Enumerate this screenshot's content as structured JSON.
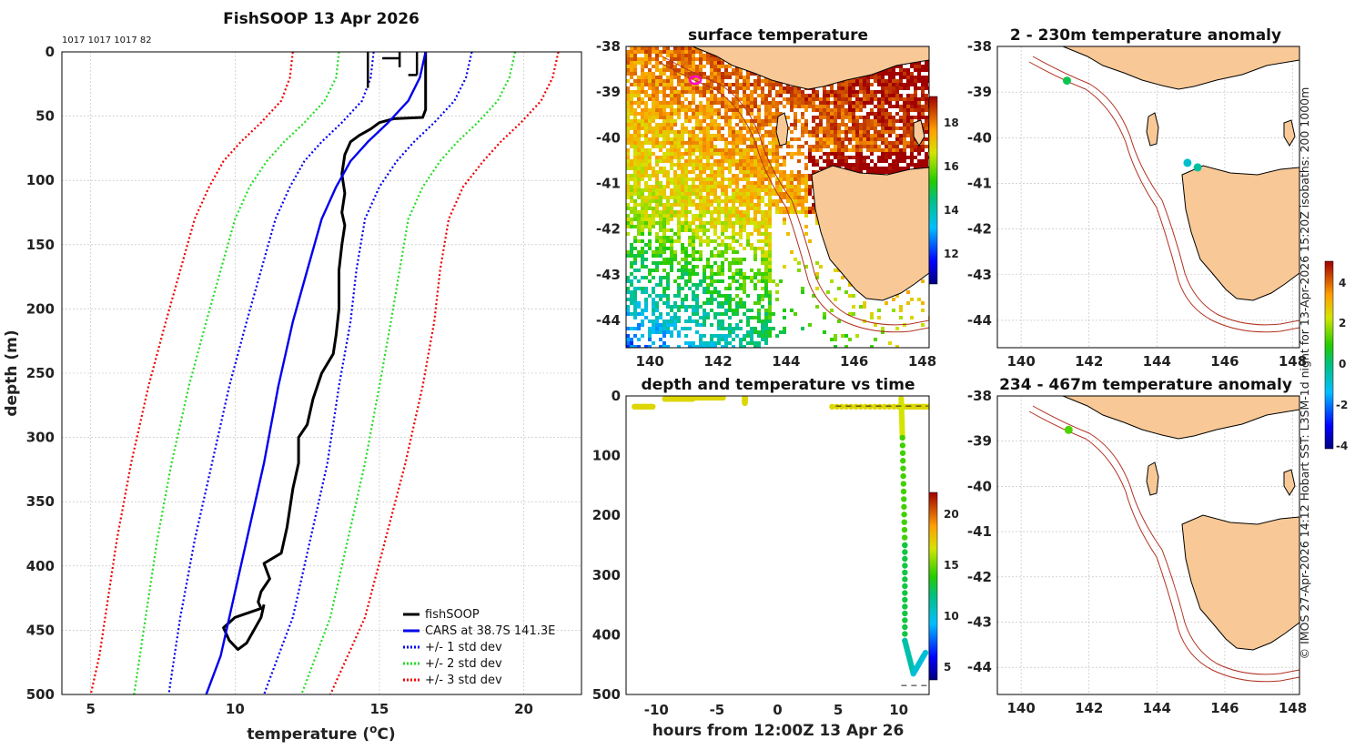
{
  "profile": {
    "title": "FishSOOP 13 Apr 2026",
    "id_line": "1017 1017 1017 82",
    "xlabel": "temperature (",
    "xlabel_sup": "o",
    "xlabel_end": "C)",
    "ylabel": "depth (m)",
    "legend": [
      "fishSOOP",
      "CARS at 38.7S 141.3E",
      "+/- 1 std dev",
      "+/- 2 std dev",
      "+/- 3 std dev"
    ],
    "colors": {
      "fishsoop": "#000000",
      "cars": "#0000ee",
      "sd1": "#0000ee",
      "sd2": "#22dd22",
      "sd3": "#ee0000"
    }
  },
  "sst": {
    "title": "surface temperature",
    "colorbar_ticks": [
      "18",
      "16",
      "14",
      "12"
    ]
  },
  "timeplot": {
    "title": "depth and temperature vs time",
    "xlabel": "hours from 12:00Z 13 Apr 26",
    "colorbar_ticks": [
      "20",
      "15",
      "10",
      "5"
    ]
  },
  "anom1": {
    "title": "2 - 230m temperature anomaly"
  },
  "anom2": {
    "title": "234 - 467m temperature anomaly"
  },
  "anomaly_colorbar_ticks": [
    "4",
    "2",
    "0",
    "-2",
    "-4"
  ],
  "credit": "© IMOS 27-Apr-2026 14:12 Hobart SST: L3SM-1d night for 13-Apr-2026 15:20Z isobaths: 200  1000m",
  "chart_data": [
    {
      "type": "line",
      "title": "FishSOOP 13 Apr 2026",
      "xlabel": "temperature (oC)",
      "ylabel": "depth (m)",
      "xlim": [
        4,
        22
      ],
      "ylim": [
        500,
        0
      ],
      "xticks": [
        5,
        10,
        15,
        20
      ],
      "yticks": [
        0,
        50,
        100,
        150,
        200,
        250,
        300,
        350,
        400,
        450,
        500
      ],
      "series": [
        {
          "name": "fishSOOP",
          "style": "solid",
          "points": [
            [
              16.6,
              0
            ],
            [
              16.6,
              45
            ],
            [
              16.5,
              51
            ],
            [
              15.5,
              52
            ],
            [
              15.0,
              55
            ],
            [
              14.7,
              60
            ],
            [
              14.3,
              65
            ],
            [
              14.0,
              70
            ],
            [
              13.8,
              80
            ],
            [
              13.7,
              95
            ],
            [
              13.8,
              110
            ],
            [
              13.7,
              125
            ],
            [
              13.8,
              135
            ],
            [
              13.7,
              150
            ],
            [
              13.6,
              170
            ],
            [
              13.6,
              200
            ],
            [
              13.5,
              220
            ],
            [
              13.4,
              235
            ],
            [
              13.0,
              250
            ],
            [
              12.7,
              270
            ],
            [
              12.5,
              290
            ],
            [
              12.2,
              300
            ],
            [
              12.2,
              320
            ],
            [
              12.0,
              340
            ],
            [
              11.8,
              370
            ],
            [
              11.6,
              390
            ],
            [
              11.0,
              398
            ],
            [
              11.2,
              410
            ],
            [
              10.9,
              420
            ],
            [
              10.8,
              428
            ],
            [
              10.9,
              433
            ],
            [
              10.0,
              440
            ],
            [
              9.6,
              448
            ],
            [
              9.8,
              458
            ],
            [
              10.1,
              465
            ],
            [
              10.4,
              460
            ],
            [
              10.9,
              440
            ],
            [
              11.0,
              430
            ]
          ]
        },
        {
          "name": "CARS at 38.7S 141.3E",
          "style": "solid",
          "points": [
            [
              16.6,
              0
            ],
            [
              16.4,
              20
            ],
            [
              16.0,
              38
            ],
            [
              15.3,
              55
            ],
            [
              14.6,
              70
            ],
            [
              14.0,
              85
            ],
            [
              13.5,
              105
            ],
            [
              13.0,
              130
            ],
            [
              12.5,
              170
            ],
            [
              12.0,
              210
            ],
            [
              11.5,
              260
            ],
            [
              11.0,
              320
            ],
            [
              10.4,
              380
            ],
            [
              9.8,
              440
            ],
            [
              9.5,
              470
            ],
            [
              9.0,
              500
            ]
          ]
        },
        {
          "name": "CARS +1 std dev",
          "style": "dotted",
          "points": [
            [
              18.2,
              0
            ],
            [
              18.0,
              20
            ],
            [
              17.6,
              38
            ],
            [
              16.9,
              55
            ],
            [
              16.2,
              70
            ],
            [
              15.6,
              85
            ],
            [
              15.0,
              105
            ],
            [
              14.5,
              130
            ],
            [
              14.2,
              170
            ],
            [
              14.0,
              210
            ],
            [
              13.6,
              260
            ],
            [
              13.2,
              320
            ],
            [
              12.6,
              380
            ],
            [
              12.0,
              440
            ],
            [
              11.5,
              470
            ],
            [
              11.0,
              500
            ]
          ]
        },
        {
          "name": "CARS -1 std dev",
          "style": "dotted",
          "points": [
            [
              14.8,
              0
            ],
            [
              14.7,
              20
            ],
            [
              14.4,
              38
            ],
            [
              13.7,
              55
            ],
            [
              13.0,
              70
            ],
            [
              12.4,
              85
            ],
            [
              11.9,
              105
            ],
            [
              11.4,
              130
            ],
            [
              10.9,
              170
            ],
            [
              10.4,
              210
            ],
            [
              9.8,
              260
            ],
            [
              9.2,
              320
            ],
            [
              8.6,
              380
            ],
            [
              8.1,
              440
            ],
            [
              7.9,
              470
            ],
            [
              7.7,
              500
            ]
          ]
        },
        {
          "name": "CARS +2 std dev",
          "style": "dotted",
          "points": [
            [
              19.7,
              0
            ],
            [
              19.5,
              20
            ],
            [
              19.1,
              38
            ],
            [
              18.4,
              55
            ],
            [
              17.7,
              70
            ],
            [
              17.1,
              85
            ],
            [
              16.5,
              105
            ],
            [
              16.0,
              130
            ],
            [
              15.7,
              170
            ],
            [
              15.4,
              210
            ],
            [
              15.0,
              260
            ],
            [
              14.5,
              320
            ],
            [
              13.9,
              380
            ],
            [
              13.3,
              440
            ],
            [
              12.8,
              470
            ],
            [
              12.3,
              500
            ]
          ]
        },
        {
          "name": "CARS -2 std dev",
          "style": "dotted",
          "points": [
            [
              13.6,
              0
            ],
            [
              13.5,
              20
            ],
            [
              13.1,
              38
            ],
            [
              12.4,
              55
            ],
            [
              11.7,
              70
            ],
            [
              11.1,
              85
            ],
            [
              10.5,
              105
            ],
            [
              10.0,
              130
            ],
            [
              9.5,
              170
            ],
            [
              9.0,
              210
            ],
            [
              8.4,
              260
            ],
            [
              7.8,
              320
            ],
            [
              7.3,
              380
            ],
            [
              6.9,
              440
            ],
            [
              6.7,
              470
            ],
            [
              6.5,
              500
            ]
          ]
        },
        {
          "name": "CARS +3 std dev",
          "style": "dotted",
          "points": [
            [
              21.2,
              0
            ],
            [
              21.0,
              20
            ],
            [
              20.6,
              38
            ],
            [
              19.9,
              55
            ],
            [
              19.2,
              70
            ],
            [
              18.6,
              85
            ],
            [
              17.9,
              105
            ],
            [
              17.4,
              130
            ],
            [
              17.1,
              170
            ],
            [
              16.9,
              210
            ],
            [
              16.5,
              260
            ],
            [
              15.9,
              320
            ],
            [
              15.2,
              380
            ],
            [
              14.5,
              440
            ],
            [
              13.9,
              470
            ],
            [
              13.3,
              500
            ]
          ]
        },
        {
          "name": "CARS -3 std dev",
          "style": "dotted",
          "points": [
            [
              12.0,
              0
            ],
            [
              11.9,
              20
            ],
            [
              11.6,
              38
            ],
            [
              10.9,
              55
            ],
            [
              10.2,
              70
            ],
            [
              9.6,
              85
            ],
            [
              9.1,
              105
            ],
            [
              8.6,
              130
            ],
            [
              8.1,
              170
            ],
            [
              7.6,
              210
            ],
            [
              7.0,
              260
            ],
            [
              6.4,
              320
            ],
            [
              5.9,
              380
            ],
            [
              5.5,
              440
            ],
            [
              5.3,
              470
            ],
            [
              5.0,
              500
            ]
          ]
        }
      ]
    },
    {
      "type": "heatmap",
      "title": "surface temperature",
      "xlim": [
        139.3,
        148.2
      ],
      "ylim": [
        -44.6,
        -38
      ],
      "xticks": [
        140,
        142,
        144,
        146,
        148
      ],
      "yticks": [
        -38,
        -39,
        -40,
        -41,
        -42,
        -43,
        -44
      ],
      "colorbar_range": [
        11,
        19
      ]
    },
    {
      "type": "scatter",
      "title": "depth and temperature vs time",
      "xlabel": "hours from 12:00Z 13 Apr 26",
      "xlim": [
        -12.5,
        12.5
      ],
      "ylim": [
        500,
        0
      ],
      "xticks": [
        -10,
        -5,
        0,
        5,
        10
      ],
      "yticks": [
        0,
        100,
        200,
        300,
        400,
        500
      ],
      "colorbar_range": [
        3,
        23
      ],
      "segments": [
        {
          "x": [
            -11.8,
            -10.3
          ],
          "depth": [
            18,
            18
          ],
          "temp": 17.5
        },
        {
          "x": [
            -9.3,
            -7.0
          ],
          "depth": [
            5,
            5
          ],
          "temp": 17.5
        },
        {
          "x": [
            -7.0,
            -4.5
          ],
          "depth": [
            3,
            3
          ],
          "temp": 17.5
        },
        {
          "x": [
            -2.7,
            -2.7
          ],
          "depth": [
            2,
            12
          ],
          "temp": 17.5
        },
        {
          "x": [
            4.5,
            10.0
          ],
          "depth": [
            18,
            18
          ],
          "temp": 17.5
        },
        {
          "x": [
            10.0,
            12.4
          ],
          "depth": [
            18,
            18
          ],
          "temp": 17.5
        },
        {
          "x": [
            10.2,
            10.3
          ],
          "depth": [
            5,
            70
          ],
          "temp": 17.0
        },
        {
          "x": [
            10.3,
            10.5
          ],
          "depth": [
            70,
            250
          ],
          "temp": 14.5
        },
        {
          "x": [
            10.5,
            10.5
          ],
          "depth": [
            250,
            410
          ],
          "temp": 13.0
        },
        {
          "x": [
            10.5,
            11.2
          ],
          "depth": [
            410,
            465
          ],
          "temp": 11.0
        },
        {
          "x": [
            11.2,
            12.2
          ],
          "depth": [
            465,
            430
          ],
          "temp": 10.0
        }
      ]
    },
    {
      "type": "scatter",
      "title": "2 - 230m temperature anomaly",
      "xlim": [
        139.3,
        148.2
      ],
      "ylim": [
        -44.6,
        -38
      ],
      "points": [
        {
          "lon": 141.35,
          "lat": -38.75,
          "anomaly": 0.3
        },
        {
          "lon": 144.9,
          "lat": -40.55,
          "anomaly": -0.9
        },
        {
          "lon": 145.2,
          "lat": -40.65,
          "anomaly": -0.4
        }
      ]
    },
    {
      "type": "scatter",
      "title": "234 - 467m temperature anomaly",
      "xlim": [
        139.3,
        148.2
      ],
      "ylim": [
        -44.6,
        -38
      ],
      "points": [
        {
          "lon": 141.4,
          "lat": -38.75,
          "anomaly": 1.2
        }
      ]
    }
  ]
}
